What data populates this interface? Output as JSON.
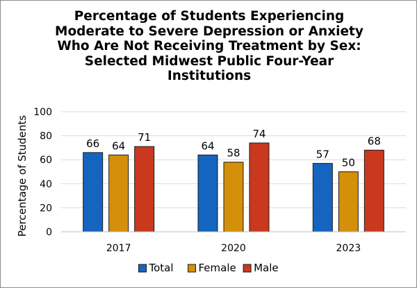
{
  "chart_data": {
    "type": "bar",
    "title_lines": [
      "Percentage of Students Experiencing",
      "Moderate to Severe Depression or Anxiety",
      "Who Are Not Receiving Treatment by Sex:",
      "Selected Midwest Public Four-Year",
      "Institutions"
    ],
    "xlabel": "",
    "ylabel": "Percentage of Students",
    "ylim": [
      0,
      100
    ],
    "yticks": [
      0,
      20,
      40,
      60,
      80,
      100
    ],
    "categories": [
      "2017",
      "2020",
      "2023"
    ],
    "series": [
      {
        "name": "Total",
        "color": "#1565c0",
        "values": [
          66,
          64,
          57
        ]
      },
      {
        "name": "Female",
        "color": "#d4900a",
        "values": [
          64,
          58,
          50
        ]
      },
      {
        "name": "Male",
        "color": "#c8391e",
        "values": [
          71,
          74,
          68
        ]
      }
    ],
    "grid": true,
    "legend_position": "bottom",
    "data_labels": true
  }
}
